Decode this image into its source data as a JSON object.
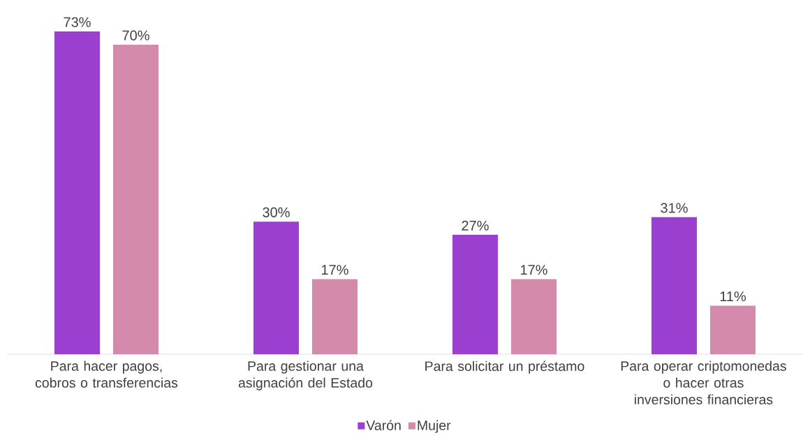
{
  "chart_data": {
    "type": "bar",
    "categories": [
      "Para hacer pagos, cobros o transferencias",
      "Para gestionar una asignación del Estado",
      "Para solicitar un préstamo",
      "Para operar criptomonedas o hacer otras inversiones financieras"
    ],
    "series": [
      {
        "name": "Varón",
        "color": "#9b3fd0",
        "values": [
          73,
          30,
          27,
          31
        ],
        "value_labels": [
          "73%",
          "30%",
          "27%",
          "31%"
        ]
      },
      {
        "name": "Mujer",
        "color": "#d48aaa",
        "values": [
          70,
          17,
          17,
          11
        ],
        "value_labels": [
          "70%",
          "17%",
          "17%",
          "11%"
        ]
      }
    ],
    "legend": "bottom"
  }
}
